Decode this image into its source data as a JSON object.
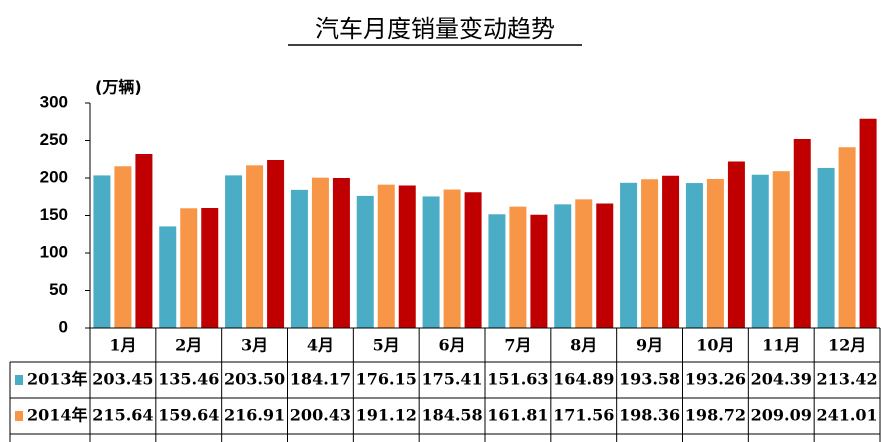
{
  "chart_data": {
    "type": "bar",
    "title": "汽车月度销量变动趋势",
    "y_label": "(万辆)",
    "categories": [
      "1月",
      "2月",
      "3月",
      "4月",
      "5月",
      "6月",
      "7月",
      "8月",
      "9月",
      "10月",
      "11月",
      "12月"
    ],
    "series": [
      {
        "name": "2013年",
        "color": "#4bacc6",
        "values": [
          203.45,
          135.46,
          203.5,
          184.17,
          176.15,
          175.41,
          151.63,
          164.89,
          193.58,
          193.26,
          204.39,
          213.42
        ],
        "value_labels": [
          "203.45",
          "135.46",
          "203.50",
          "184.17",
          "176.15",
          "175.41",
          "151.63",
          "164.89",
          "193.58",
          "193.26",
          "204.39",
          "213.42"
        ]
      },
      {
        "name": "2014年",
        "color": "#f79646",
        "values": [
          215.64,
          159.64,
          216.91,
          200.43,
          191.12,
          184.58,
          161.81,
          171.56,
          198.36,
          198.72,
          209.09,
          241.01
        ],
        "value_labels": [
          "215.64",
          "159.64",
          "216.91",
          "200.43",
          "191.12",
          "184.58",
          "161.81",
          "171.56",
          "198.36",
          "198.72",
          "209.09",
          "241.01"
        ]
      },
      {
        "color": "#c00000",
        "values": [
          232,
          160,
          224,
          200,
          190,
          181,
          151,
          166,
          203,
          222,
          252,
          279
        ]
      }
    ],
    "ylim": [
      0,
      300
    ],
    "yticks": [
      0,
      50,
      100,
      150,
      200,
      250,
      300
    ]
  }
}
